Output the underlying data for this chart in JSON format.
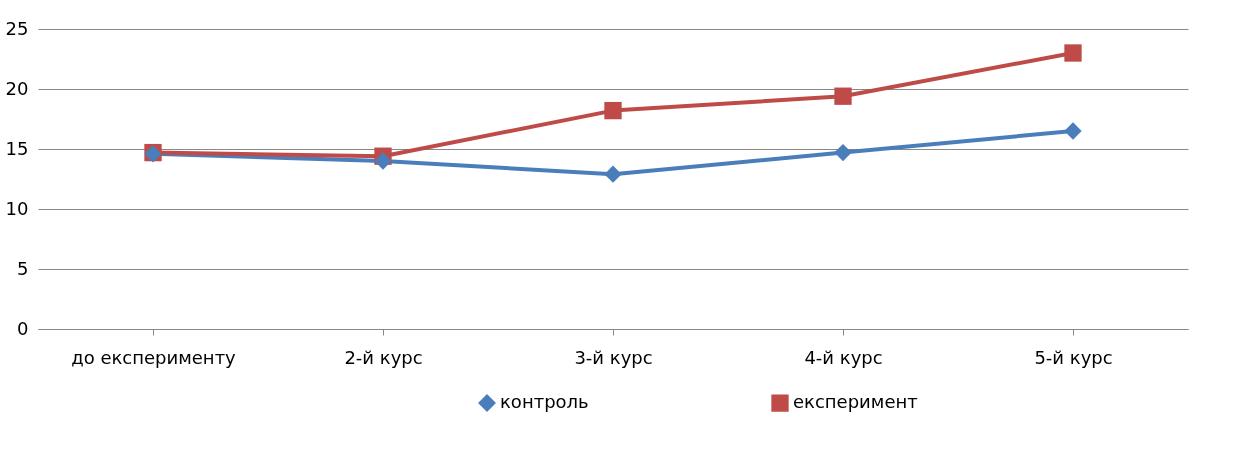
{
  "chart_data": {
    "type": "line",
    "categories": [
      "до експерименту",
      "2-й курс",
      "3-й курс",
      "4-й курс",
      "5-й курс"
    ],
    "series": [
      {
        "name": "контроль",
        "color": "#4a7ebb",
        "marker": "diamond",
        "values": [
          14.6,
          14.0,
          12.9,
          14.7,
          16.5
        ]
      },
      {
        "name": "експеримент",
        "color": "#be4b48",
        "marker": "square",
        "values": [
          14.7,
          14.4,
          18.2,
          19.4,
          23.0
        ]
      }
    ],
    "ylim": [
      0,
      25
    ],
    "yticks": [
      0,
      5,
      10,
      15,
      20,
      25
    ],
    "grid": "y",
    "legend": "bottom",
    "line_style": "solid"
  }
}
